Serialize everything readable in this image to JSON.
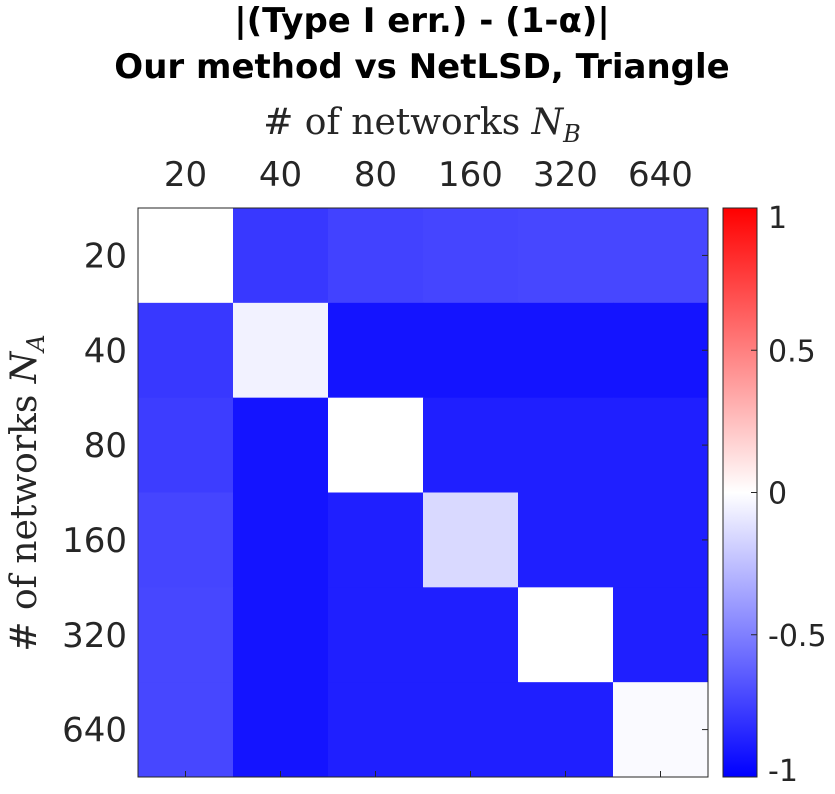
{
  "chart_data": {
    "type": "heatmap",
    "title_lines": [
      "|(Type I err.) - (1-α)|",
      "Our method vs NetLSD, Triangle"
    ],
    "xlabel": {
      "text": "# of networks ",
      "symbol": "N",
      "subscript": "B"
    },
    "ylabel": {
      "text": "# of networks ",
      "symbol": "N",
      "subscript": "A"
    },
    "x_categories": [
      "20",
      "40",
      "80",
      "160",
      "320",
      "640"
    ],
    "y_categories": [
      "20",
      "40",
      "80",
      "160",
      "320",
      "640"
    ],
    "x_axis_position": "top",
    "values": [
      [
        0.0,
        -0.78,
        -0.74,
        -0.73,
        -0.72,
        -0.72
      ],
      [
        -0.78,
        -0.05,
        -0.92,
        -0.92,
        -0.92,
        -0.92
      ],
      [
        -0.76,
        -0.92,
        0.0,
        -0.88,
        -0.88,
        -0.88
      ],
      [
        -0.73,
        -0.92,
        -0.88,
        -0.15,
        -0.88,
        -0.88
      ],
      [
        -0.72,
        -0.92,
        -0.88,
        -0.88,
        0.0,
        -0.88
      ],
      [
        -0.72,
        -0.92,
        -0.88,
        -0.88,
        -0.88,
        -0.02
      ]
    ],
    "colorbar": {
      "range": [
        -1,
        1
      ],
      "ticks": [
        1,
        0.5,
        0,
        -0.5,
        -1
      ],
      "tick_labels": [
        "1",
        "0.5",
        "0",
        "-0.5",
        "-1"
      ],
      "colormap": "blue-white-red",
      "low_color": "#0000ff",
      "mid_color": "#ffffff",
      "high_color": "#ff0000"
    }
  }
}
